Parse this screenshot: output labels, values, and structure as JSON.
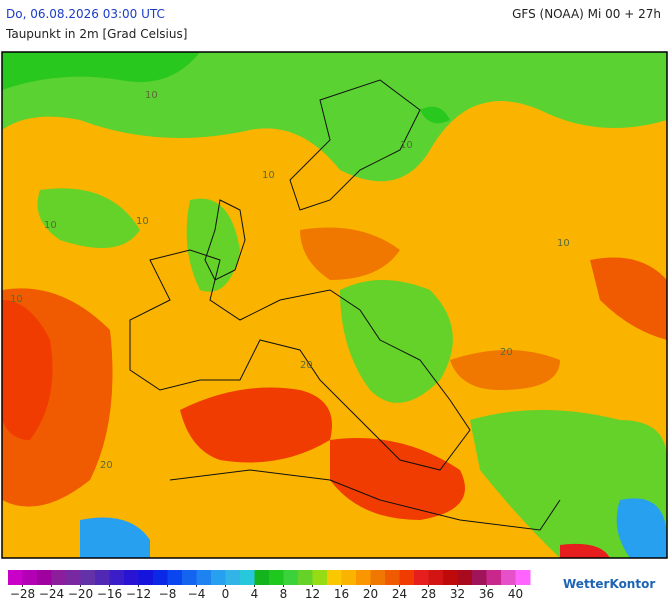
{
  "header": {
    "datetime": "Do, 06.08.2026 03:00 UTC",
    "model": "GFS (NOAA) Mi 00 + 27h",
    "parameter": "Taupunkt in 2m [Grad Celsius]"
  },
  "map": {
    "contour_labels": [
      "10",
      "10",
      "10",
      "10",
      "10",
      "10",
      "20",
      "20",
      "20",
      "10"
    ]
  },
  "legend": {
    "range": [
      -30,
      42
    ],
    "colors": [
      "#c800c8",
      "#b400b4",
      "#a000a0",
      "#8c1e9c",
      "#7828a0",
      "#6432a8",
      "#5028b4",
      "#3c1ec8",
      "#2814d2",
      "#1414dc",
      "#0a28e6",
      "#0a46f0",
      "#1464f0",
      "#1e82f0",
      "#28a0f0",
      "#32b4e6",
      "#28c8dc",
      "#14b41e",
      "#1ec81e",
      "#3cd23c",
      "#64d228",
      "#96dc14",
      "#fac800",
      "#fab400",
      "#fa9600",
      "#f07800",
      "#f05a00",
      "#f03c00",
      "#e61e1e",
      "#d21414",
      "#be0a0a",
      "#aa0a1e",
      "#a0145a",
      "#c8288c",
      "#e650c8",
      "#ff64ff"
    ],
    "ticks": [
      {
        "value": -28,
        "label": "−28"
      },
      {
        "value": -24,
        "label": "−24"
      },
      {
        "value": -20,
        "label": "−20"
      },
      {
        "value": -16,
        "label": "−16"
      },
      {
        "value": -12,
        "label": "−12"
      },
      {
        "value": -8,
        "label": "−8"
      },
      {
        "value": -4,
        "label": "−4"
      },
      0,
      4,
      8,
      12,
      16,
      20,
      24,
      28,
      32,
      36,
      40
    ]
  },
  "brand": "WetterKontor"
}
